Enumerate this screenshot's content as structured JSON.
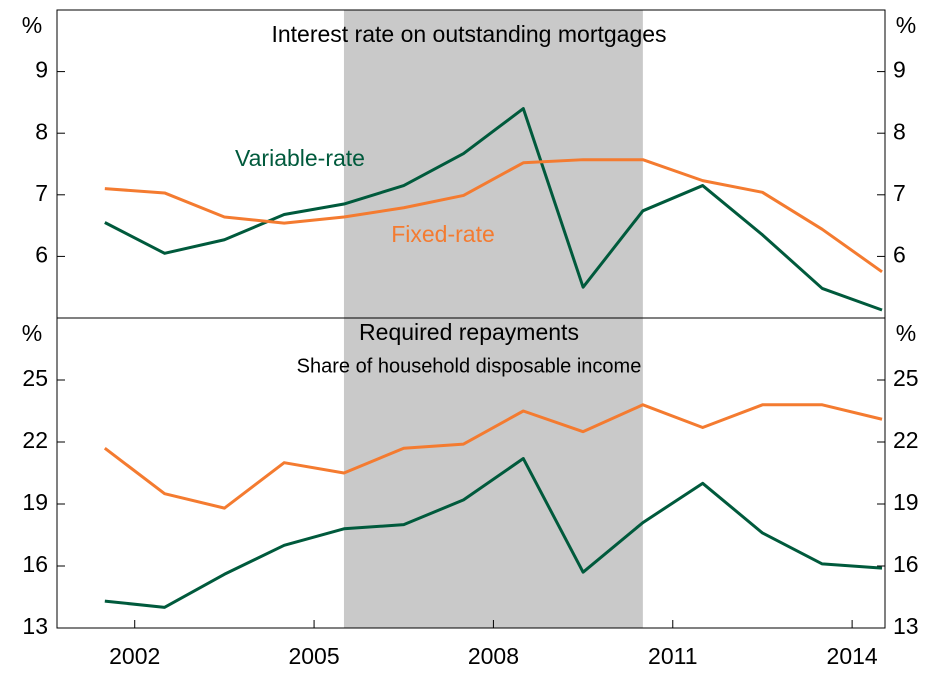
{
  "chart_data": [
    {
      "type": "line",
      "title": "Interest rate on outstanding mortgages",
      "ylabel": "%",
      "x": [
        2001.5,
        2002.5,
        2003.5,
        2004.5,
        2005.5,
        2006.5,
        2007.5,
        2008.5,
        2009.5,
        2010.5,
        2011.5,
        2012.5,
        2013.5,
        2014.5
      ],
      "xlim": [
        2000.7,
        2014.55
      ],
      "ylim": [
        5,
        10
      ],
      "yticks": [
        6,
        7,
        8,
        9
      ],
      "shaded_region": [
        2005.5,
        2010.5
      ],
      "series": [
        {
          "name": "Variable-rate",
          "color": "#005a3c",
          "values": [
            6.55,
            6.05,
            6.27,
            6.68,
            6.85,
            7.15,
            7.67,
            8.4,
            5.5,
            6.74,
            7.15,
            6.35,
            5.48,
            5.13
          ]
        },
        {
          "name": "Fixed-rate",
          "color": "#f47b30",
          "values": [
            7.1,
            7.03,
            6.64,
            6.54,
            6.64,
            6.79,
            6.99,
            7.52,
            7.57,
            7.57,
            7.23,
            7.04,
            6.44,
            5.75
          ]
        }
      ]
    },
    {
      "type": "line",
      "title": "Required repayments",
      "subtitle": "Share of household disposable income",
      "ylabel": "%",
      "x": [
        2001.5,
        2002.5,
        2003.5,
        2004.5,
        2005.5,
        2006.5,
        2007.5,
        2008.5,
        2009.5,
        2010.5,
        2011.5,
        2012.5,
        2013.5,
        2014.5
      ],
      "xlim": [
        2000.7,
        2014.55
      ],
      "xticks": [
        2002,
        2005,
        2008,
        2011,
        2014
      ],
      "ylim": [
        13,
        28
      ],
      "yticks": [
        13,
        16,
        19,
        22,
        25
      ],
      "shaded_region": [
        2005.5,
        2010.5
      ],
      "series": [
        {
          "color": "#005a3c",
          "values": [
            14.3,
            14.0,
            15.6,
            17.0,
            17.8,
            18.0,
            19.2,
            21.2,
            15.7,
            18.1,
            20.0,
            17.6,
            16.1,
            15.9
          ]
        },
        {
          "color": "#f47b30",
          "values": [
            21.7,
            19.5,
            18.8,
            21.0,
            20.5,
            21.7,
            21.9,
            23.5,
            22.5,
            23.8,
            22.7,
            23.8,
            23.8,
            23.1
          ]
        }
      ]
    }
  ]
}
